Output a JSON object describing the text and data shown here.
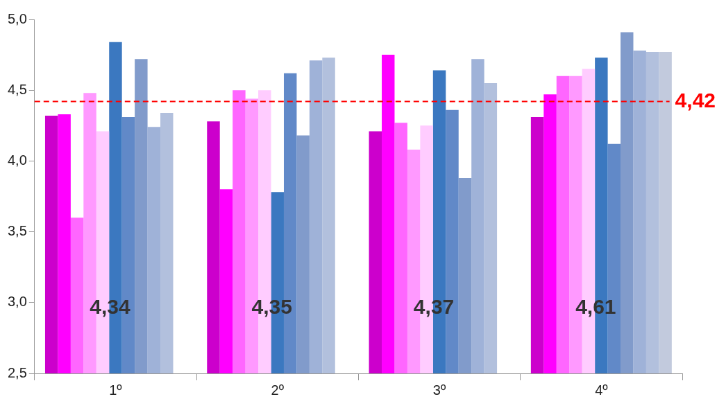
{
  "chart_data": {
    "type": "bar",
    "categories": [
      "1º",
      "2º",
      "3º",
      "4º"
    ],
    "series": [
      {
        "color": "#cc00cc",
        "values": [
          4.32,
          4.28,
          4.21,
          4.31
        ]
      },
      {
        "color": "#ff00ff",
        "values": [
          4.33,
          3.8,
          4.75,
          4.47
        ]
      },
      {
        "color": "#ff66ff",
        "values": [
          3.6,
          4.5,
          4.27,
          4.6
        ]
      },
      {
        "color": "#ff99ff",
        "values": [
          4.48,
          4.44,
          4.08,
          4.6
        ]
      },
      {
        "color": "#ffccff",
        "values": [
          4.21,
          4.5,
          4.25,
          4.65
        ]
      },
      {
        "color": "#3b78c0",
        "values": [
          4.84,
          3.78,
          4.64,
          4.73
        ]
      },
      {
        "color": "#6189c8",
        "values": [
          4.31,
          4.62,
          4.36,
          4.12
        ]
      },
      {
        "color": "#819bcb",
        "values": [
          4.72,
          4.18,
          3.88,
          4.91
        ]
      },
      {
        "color": "#9fb2d8",
        "values": [
          4.24,
          4.71,
          4.72,
          4.78
        ]
      },
      {
        "color": "#b2c0dd",
        "values": [
          4.34,
          4.73,
          4.55,
          4.77
        ]
      },
      {
        "color": "#c2cadd",
        "values": [
          null,
          null,
          null,
          4.77
        ]
      }
    ],
    "ylim": [
      2.5,
      5.0
    ],
    "yticks": [
      {
        "value": 2.5,
        "label": "2,5"
      },
      {
        "value": 3.0,
        "label": "3,0"
      },
      {
        "value": 3.5,
        "label": "3,5"
      },
      {
        "value": 4.0,
        "label": "4,0"
      },
      {
        "value": 4.5,
        "label": "4,5"
      },
      {
        "value": 5.0,
        "label": "5,0"
      }
    ],
    "ref_lines": [
      {
        "axis": "y",
        "value": 4.42,
        "label": "4,42",
        "color": "#ff0000",
        "line_style": "dashed"
      }
    ],
    "annotations": [
      "4,34",
      "4,35",
      "4,37",
      "4,61"
    ],
    "grid": false,
    "legend": false
  }
}
